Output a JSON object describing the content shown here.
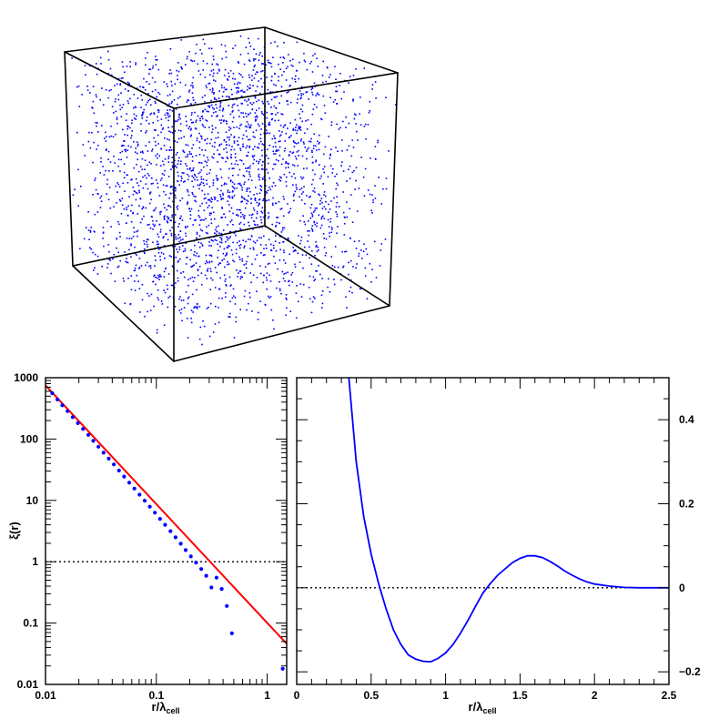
{
  "colors": {
    "points": "#0000ff",
    "fit_line": "#ff0000",
    "curve": "#0000ff",
    "axes": "#000000"
  },
  "chart_data": [
    {
      "type": "scatter3d",
      "description_kind": "point cloud inside a wireframe cube",
      "n_points": 2600,
      "point_color": "#0000ff"
    },
    {
      "type": "scatter",
      "xscale": "log",
      "yscale": "log",
      "xlim": [
        0.01,
        1.5
      ],
      "ylim": [
        0.01,
        1000
      ],
      "ylabel": "ξ(r)",
      "xlabel_main": "r/λ",
      "xlabel_sub": "cell",
      "xticks": [
        {
          "v": 0.01,
          "label": "0.01"
        },
        {
          "v": 0.1,
          "label": "0.1"
        },
        {
          "v": 1,
          "label": "1"
        }
      ],
      "yticks": [
        {
          "v": 0.01,
          "label": "0.01"
        },
        {
          "v": 0.1,
          "label": "0.1"
        },
        {
          "v": 1,
          "label": "1"
        },
        {
          "v": 10,
          "label": "10"
        },
        {
          "v": 100,
          "label": "100"
        },
        {
          "v": 1000,
          "label": "1000"
        }
      ],
      "points": [
        [
          0.0115,
          560
        ],
        [
          0.0128,
          440
        ],
        [
          0.0142,
          355
        ],
        [
          0.0158,
          285
        ],
        [
          0.0176,
          228
        ],
        [
          0.0196,
          182
        ],
        [
          0.0218,
          146
        ],
        [
          0.0243,
          117
        ],
        [
          0.027,
          93.5
        ],
        [
          0.03,
          75
        ],
        [
          0.0334,
          60
        ],
        [
          0.0372,
          48
        ],
        [
          0.0414,
          38.5
        ],
        [
          0.046,
          30.7
        ],
        [
          0.0512,
          24.5
        ],
        [
          0.057,
          19.5
        ],
        [
          0.0634,
          15.6
        ],
        [
          0.0705,
          12.4
        ],
        [
          0.0785,
          9.9
        ],
        [
          0.0873,
          7.9
        ],
        [
          0.0971,
          6.3
        ],
        [
          0.108,
          5.0
        ],
        [
          0.12,
          4.0
        ],
        [
          0.134,
          3.15
        ],
        [
          0.149,
          2.5
        ],
        [
          0.166,
          1.97
        ],
        [
          0.184,
          1.55
        ],
        [
          0.205,
          1.22
        ],
        [
          0.228,
          0.97
        ],
        [
          0.254,
          0.76
        ],
        [
          0.282,
          0.59
        ],
        [
          0.314,
          0.38
        ],
        [
          0.349,
          0.55
        ],
        [
          0.389,
          0.36
        ],
        [
          0.432,
          0.19
        ],
        [
          0.481,
          0.068
        ],
        [
          1.38,
          0.018
        ]
      ],
      "fit_line": {
        "x": [
          0.01,
          1.5
        ],
        "y": [
          750,
          0.046
        ],
        "color": "#ff0000"
      },
      "reference_line": {
        "y": 1,
        "style": "dotted"
      }
    },
    {
      "type": "line",
      "xlim": [
        0,
        2.5
      ],
      "ylim": [
        -0.23,
        0.5
      ],
      "xlabel_main": "r/λ",
      "xlabel_sub": "cell",
      "xticks": [
        {
          "v": 0,
          "label": "0"
        },
        {
          "v": 0.5,
          "label": "0.5"
        },
        {
          "v": 1,
          "label": "1"
        },
        {
          "v": 1.5,
          "label": "1.5"
        },
        {
          "v": 2,
          "label": "2"
        },
        {
          "v": 2.5,
          "label": "2.5"
        }
      ],
      "yticks": [
        {
          "v": -0.2,
          "label": "−0.2"
        },
        {
          "v": 0,
          "label": "0"
        },
        {
          "v": 0.2,
          "label": "0.2"
        },
        {
          "v": 0.4,
          "label": "0.4"
        }
      ],
      "x": [
        0.35,
        0.4,
        0.45,
        0.5,
        0.55,
        0.6,
        0.65,
        0.7,
        0.75,
        0.8,
        0.85,
        0.9,
        0.95,
        1.0,
        1.05,
        1.1,
        1.15,
        1.2,
        1.25,
        1.3,
        1.35,
        1.4,
        1.45,
        1.5,
        1.55,
        1.6,
        1.65,
        1.7,
        1.75,
        1.8,
        1.85,
        1.9,
        1.95,
        2.0,
        2.1,
        2.2,
        2.3,
        2.4,
        2.5
      ],
      "y": [
        0.5,
        0.3,
        0.17,
        0.08,
        0.01,
        -0.05,
        -0.1,
        -0.135,
        -0.16,
        -0.17,
        -0.175,
        -0.176,
        -0.168,
        -0.155,
        -0.135,
        -0.108,
        -0.078,
        -0.045,
        -0.013,
        0.01,
        0.03,
        0.045,
        0.06,
        0.07,
        0.076,
        0.076,
        0.072,
        0.063,
        0.052,
        0.04,
        0.03,
        0.021,
        0.014,
        0.009,
        0.004,
        0.001,
        0.0,
        0.0,
        0.0
      ],
      "reference_line": {
        "y": 0,
        "style": "dotted"
      }
    }
  ]
}
